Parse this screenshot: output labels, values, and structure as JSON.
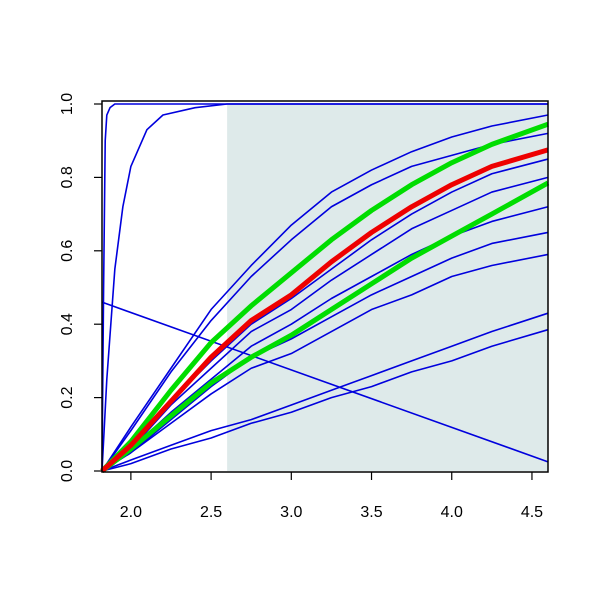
{
  "chart_data": {
    "type": "line",
    "xlim": [
      1.82,
      4.6
    ],
    "ylim": [
      0,
      1
    ],
    "xticks": [
      {
        "value": 2,
        "label": "2.0"
      },
      2.5,
      {
        "value": 3,
        "label": "3.0"
      },
      3.5,
      {
        "value": 4,
        "label": "4.0"
      },
      4.5
    ],
    "yticks": [
      {
        "value": 0,
        "label": "0.0"
      },
      0.2,
      0.4,
      0.6,
      0.8,
      {
        "value": 1,
        "label": "1.0"
      }
    ],
    "shaded_region": {
      "xlim": [
        2.6,
        4.6
      ],
      "ylim": [
        0,
        1
      ],
      "color": "#deeaea"
    },
    "series": [
      {
        "color": "#0000dd",
        "linewidth": 1.6,
        "x": [
          1.82,
          2.0,
          2.25,
          2.5,
          2.75,
          3.0,
          3.25,
          3.5,
          3.75,
          4.0,
          4.25,
          4.6
        ],
        "values": [
          0,
          0.12,
          0.28,
          0.44,
          0.56,
          0.67,
          0.76,
          0.82,
          0.87,
          0.91,
          0.94,
          0.97
        ]
      },
      {
        "color": "#0000dd",
        "linewidth": 1.6,
        "x": [
          1.82,
          2.0,
          2.25,
          2.5,
          2.75,
          3.0,
          3.25,
          3.5,
          3.75,
          4.0,
          4.25,
          4.6
        ],
        "values": [
          0,
          0.11,
          0.27,
          0.41,
          0.53,
          0.63,
          0.72,
          0.78,
          0.83,
          0.86,
          0.89,
          0.92
        ]
      },
      {
        "color": "#0000dd",
        "linewidth": 1.6,
        "x": [
          1.82,
          2.0,
          2.25,
          2.5,
          2.75,
          3.0,
          3.25,
          3.5,
          3.75,
          4.0,
          4.25,
          4.6
        ],
        "values": [
          0,
          0.07,
          0.19,
          0.3,
          0.4,
          0.47,
          0.55,
          0.63,
          0.7,
          0.76,
          0.81,
          0.85
        ]
      },
      {
        "color": "#0000dd",
        "linewidth": 1.6,
        "x": [
          1.82,
          2.0,
          2.25,
          2.5,
          2.75,
          3.0,
          3.25,
          3.5,
          3.75,
          4.0,
          4.25,
          4.6
        ],
        "values": [
          0,
          0.06,
          0.18,
          0.28,
          0.38,
          0.44,
          0.52,
          0.59,
          0.66,
          0.71,
          0.76,
          0.8
        ]
      },
      {
        "color": "#0000dd",
        "linewidth": 1.6,
        "x": [
          1.82,
          2.0,
          2.25,
          2.5,
          2.75,
          3.0,
          3.25,
          3.5,
          3.75,
          4.0,
          4.25,
          4.6
        ],
        "values": [
          0,
          0.06,
          0.16,
          0.25,
          0.34,
          0.4,
          0.47,
          0.53,
          0.59,
          0.64,
          0.68,
          0.72
        ]
      },
      {
        "color": "#0000dd",
        "linewidth": 1.6,
        "x": [
          1.82,
          2.0,
          2.25,
          2.5,
          2.75,
          3.0,
          3.25,
          3.5,
          3.75,
          4.0,
          4.25,
          4.6
        ],
        "values": [
          0,
          0.05,
          0.14,
          0.23,
          0.31,
          0.36,
          0.42,
          0.48,
          0.53,
          0.58,
          0.62,
          0.65
        ]
      },
      {
        "color": "#0000dd",
        "linewidth": 1.6,
        "x": [
          1.82,
          2.0,
          2.25,
          2.5,
          2.75,
          3.0,
          3.25,
          3.5,
          3.75,
          4.0,
          4.25,
          4.6
        ],
        "values": [
          0,
          0.05,
          0.13,
          0.21,
          0.28,
          0.32,
          0.38,
          0.44,
          0.48,
          0.53,
          0.56,
          0.59
        ]
      },
      {
        "color": "#0000dd",
        "linewidth": 1.6,
        "x": [
          1.82,
          2.0,
          2.25,
          2.5,
          2.75,
          3.0,
          3.25,
          3.5,
          3.75,
          4.0,
          4.25,
          4.6
        ],
        "values": [
          0,
          0.03,
          0.07,
          0.11,
          0.14,
          0.18,
          0.22,
          0.26,
          0.3,
          0.34,
          0.38,
          0.43
        ]
      },
      {
        "color": "#0000dd",
        "linewidth": 1.6,
        "x": [
          1.82,
          2.0,
          2.25,
          2.5,
          2.75,
          3.0,
          3.25,
          3.5,
          3.75,
          4.0,
          4.25,
          4.6
        ],
        "values": [
          0,
          0.02,
          0.06,
          0.09,
          0.13,
          0.16,
          0.2,
          0.23,
          0.27,
          0.3,
          0.34,
          0.385
        ]
      },
      {
        "color": "#0000dd",
        "linewidth": 1.6,
        "x": [
          1.82,
          1.83,
          1.84,
          1.85,
          1.87,
          1.9,
          2.5,
          4.6
        ],
        "values": [
          0,
          0.5,
          0.9,
          0.97,
          0.99,
          1,
          1,
          1
        ]
      },
      {
        "color": "#0000dd",
        "linewidth": 1.6,
        "x": [
          1.82,
          1.85,
          1.9,
          1.95,
          2.0,
          2.1,
          2.2,
          2.4,
          2.6,
          4.6
        ],
        "values": [
          0,
          0.25,
          0.55,
          0.72,
          0.83,
          0.93,
          0.97,
          0.99,
          1,
          1
        ]
      },
      {
        "color": "#0000dd",
        "linewidth": 1.6,
        "x": [
          1.82,
          4.6
        ],
        "values": [
          0.46,
          0.025
        ]
      },
      {
        "color": "#00dd00",
        "linewidth": 5,
        "x": [
          1.82,
          2.0,
          2.25,
          2.5,
          2.75,
          3.0,
          3.25,
          3.5,
          3.75,
          4.0,
          4.25,
          4.6
        ],
        "values": [
          0,
          0.08,
          0.22,
          0.35,
          0.45,
          0.54,
          0.63,
          0.71,
          0.78,
          0.84,
          0.89,
          0.945
        ]
      },
      {
        "color": "#00dd00",
        "linewidth": 5,
        "x": [
          1.82,
          2.0,
          2.25,
          2.5,
          2.75,
          3.0,
          3.25,
          3.5,
          3.75,
          4.0,
          4.25,
          4.6
        ],
        "values": [
          0,
          0.06,
          0.15,
          0.24,
          0.31,
          0.37,
          0.44,
          0.51,
          0.58,
          0.64,
          0.7,
          0.785
        ]
      },
      {
        "color": "#ee0000",
        "linewidth": 5,
        "x": [
          1.82,
          2.0,
          2.25,
          2.5,
          2.75,
          3.0,
          3.25,
          3.5,
          3.75,
          4.0,
          4.25,
          4.6
        ],
        "values": [
          0,
          0.07,
          0.19,
          0.31,
          0.41,
          0.48,
          0.57,
          0.65,
          0.72,
          0.78,
          0.83,
          0.875
        ]
      }
    ]
  }
}
